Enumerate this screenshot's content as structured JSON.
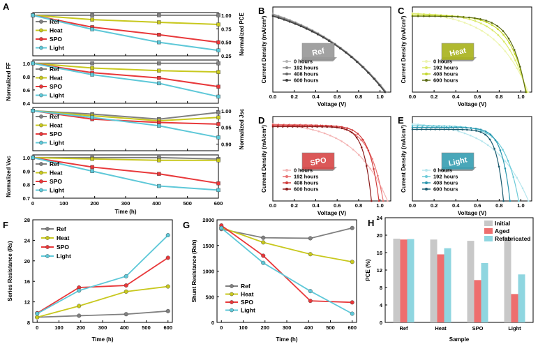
{
  "colors": {
    "Ref": "#808080",
    "Heat": "#c8c81e",
    "SPO": "#e8383a",
    "Light": "#5ec8d8"
  },
  "chart_data": [
    {
      "id": "A1",
      "type": "line",
      "panel_label": "A",
      "ylabel_right": "Normalized PCE",
      "x": [
        0,
        192,
        408,
        600
      ],
      "xlim": [
        0,
        600
      ],
      "ylim": [
        0.25,
        1.05
      ],
      "yticks": [
        0.25,
        0.5,
        0.75,
        1.0
      ],
      "ytick_labels": [
        "0.25",
        "0.50",
        "0.75",
        "1.00"
      ],
      "ytick_side": "right",
      "series": [
        {
          "name": "Ref",
          "values": [
            1.0,
            1.0,
            1.0,
            1.0
          ]
        },
        {
          "name": "Heat",
          "values": [
            1.0,
            0.92,
            0.87,
            0.83
          ]
        },
        {
          "name": "SPO",
          "values": [
            1.0,
            0.78,
            0.64,
            0.5
          ]
        },
        {
          "name": "Light",
          "values": [
            1.0,
            0.74,
            0.5,
            0.35
          ]
        }
      ]
    },
    {
      "id": "A2",
      "type": "line",
      "ylabel": "Normalized FF",
      "x": [
        0,
        192,
        408,
        600
      ],
      "xlim": [
        0,
        600
      ],
      "ylim": [
        0.4,
        1.05
      ],
      "yticks": [
        0.4,
        0.6,
        0.8,
        1.0
      ],
      "ytick_labels": [
        "0.4",
        "0.6",
        "0.8",
        "1.0"
      ],
      "ytick_side": "left",
      "series": [
        {
          "name": "Ref",
          "values": [
            1.0,
            1.0,
            1.0,
            1.0
          ]
        },
        {
          "name": "Heat",
          "values": [
            1.0,
            0.93,
            0.89,
            0.87
          ]
        },
        {
          "name": "SPO",
          "values": [
            1.0,
            0.86,
            0.78,
            0.65
          ]
        },
        {
          "name": "Light",
          "values": [
            1.0,
            0.83,
            0.7,
            0.5
          ]
        }
      ]
    },
    {
      "id": "A3",
      "type": "line",
      "ylabel_right": "Normalized Jsc",
      "x": [
        0,
        192,
        408,
        600
      ],
      "xlim": [
        0,
        600
      ],
      "ylim": [
        0.88,
        1.01
      ],
      "yticks": [
        0.9,
        0.95,
        1.0
      ],
      "ytick_labels": [
        "0.90",
        "0.95",
        "1.00"
      ],
      "ytick_side": "right",
      "series": [
        {
          "name": "Ref",
          "values": [
            1.0,
            0.99,
            0.975,
            0.995
          ]
        },
        {
          "name": "Heat",
          "values": [
            1.0,
            0.985,
            0.97,
            0.98
          ]
        },
        {
          "name": "SPO",
          "values": [
            1.0,
            0.975,
            0.965,
            0.96
          ]
        },
        {
          "name": "Light",
          "values": [
            1.0,
            0.98,
            0.955,
            0.92
          ]
        }
      ]
    },
    {
      "id": "A4",
      "type": "line",
      "ylabel": "Normalized Voc",
      "xlabel": "Time (h)",
      "x": [
        0,
        192,
        408,
        600
      ],
      "xlim": [
        0,
        600
      ],
      "ylim": [
        0.7,
        1.02
      ],
      "xticks": [
        0,
        100,
        200,
        300,
        400,
        500,
        600
      ],
      "yticks": [
        0.7,
        0.8,
        0.9,
        1.0
      ],
      "ytick_labels": [
        "0.7",
        "0.8",
        "0.9",
        "1.0"
      ],
      "ytick_side": "left",
      "series": [
        {
          "name": "Ref",
          "values": [
            1.0,
            1.0,
            1.0,
            0.99
          ]
        },
        {
          "name": "Heat",
          "values": [
            1.0,
            0.99,
            0.98,
            0.98
          ]
        },
        {
          "name": "SPO",
          "values": [
            1.0,
            0.93,
            0.88,
            0.81
          ]
        },
        {
          "name": "Light",
          "values": [
            1.0,
            0.9,
            0.79,
            0.76
          ]
        }
      ]
    },
    {
      "id": "B",
      "type": "line",
      "panel_label": "B",
      "device": "Ref",
      "xlabel": "Voltage (V)",
      "ylabel": "Current Density (mA/cm²)",
      "xlim": [
        0,
        1.1
      ],
      "ylim": [
        0,
        25
      ],
      "xticks": [
        0,
        0.2,
        0.4,
        0.6,
        0.8,
        1.0
      ],
      "xtick_labels": [
        "0.0",
        "0.2",
        "0.4",
        "0.6",
        "0.8",
        "1.0"
      ],
      "legend": [
        "0 hours",
        "192 hours",
        "408 hours",
        "600 hours"
      ],
      "curves": [
        {
          "Jsc": 23.0,
          "Voc": 1.06,
          "n": 30
        },
        {
          "Jsc": 22.8,
          "Voc": 1.055,
          "n": 30
        },
        {
          "Jsc": 22.5,
          "Voc": 1.05,
          "n": 28
        },
        {
          "Jsc": 22.3,
          "Voc": 1.045,
          "n": 28
        }
      ]
    },
    {
      "id": "C",
      "type": "line",
      "panel_label": "C",
      "device": "Heat",
      "xlabel": "Voltage (V)",
      "ylabel": "Current Density (mA/cm²)",
      "xlim": [
        0,
        1.1
      ],
      "ylim": [
        0,
        25
      ],
      "xticks": [
        0,
        0.2,
        0.4,
        0.6,
        0.8,
        1.0
      ],
      "xtick_labels": [
        "0.0",
        "0.2",
        "0.4",
        "0.6",
        "0.8",
        "1.0"
      ],
      "legend": [
        "0 hours",
        "192 hours",
        "408 hours",
        "600 hours"
      ],
      "curves": [
        {
          "Jsc": 23.2,
          "Voc": 1.07,
          "n": 12
        },
        {
          "Jsc": 23.0,
          "Voc": 1.055,
          "n": 8
        },
        {
          "Jsc": 22.6,
          "Voc": 1.05,
          "n": 6
        },
        {
          "Jsc": 22.3,
          "Voc": 1.045,
          "n": 5
        }
      ]
    },
    {
      "id": "D",
      "type": "line",
      "panel_label": "D",
      "device": "SPO",
      "xlabel": "Voltage (V)",
      "ylabel": "Current Density (mA/cm²)",
      "xlim": [
        0,
        1.1
      ],
      "ylim": [
        0,
        25
      ],
      "xticks": [
        0,
        0.2,
        0.4,
        0.6,
        0.8,
        1.0
      ],
      "xtick_labels": [
        "0.0",
        "0.2",
        "0.4",
        "0.6",
        "0.8",
        "1.0"
      ],
      "legend": [
        "0 hours",
        "192 hours",
        "408 hours",
        "600 hours"
      ],
      "curves": [
        {
          "Jsc": 22.8,
          "Voc": 1.07,
          "n": 12
        },
        {
          "Jsc": 22.6,
          "Voc": 1.03,
          "n": 5
        },
        {
          "Jsc": 22.4,
          "Voc": 0.99,
          "n": 3.5
        },
        {
          "Jsc": 22.0,
          "Voc": 0.92,
          "n": 2.8
        }
      ]
    },
    {
      "id": "E",
      "type": "line",
      "panel_label": "E",
      "device": "Light",
      "xlabel": "Voltage (V)",
      "ylabel": "Current Density (mA/cm²)",
      "xlim": [
        0,
        1.1
      ],
      "ylim": [
        0,
        25
      ],
      "xticks": [
        0,
        0.2,
        0.4,
        0.6,
        0.8,
        1.0
      ],
      "xtick_labels": [
        "0.0",
        "0.2",
        "0.4",
        "0.6",
        "0.8",
        "1.0"
      ],
      "legend": [
        "0 hours",
        "192 hours",
        "408 hours",
        "600 hours"
      ],
      "curves": [
        {
          "Jsc": 22.8,
          "Voc": 1.07,
          "n": 12
        },
        {
          "Jsc": 22.3,
          "Voc": 0.98,
          "n": 5
        },
        {
          "Jsc": 21.8,
          "Voc": 0.9,
          "n": 3
        },
        {
          "Jsc": 21.2,
          "Voc": 0.84,
          "n": 2.5
        }
      ]
    },
    {
      "id": "F",
      "type": "line",
      "panel_label": "F",
      "xlabel": "Time (h)",
      "ylabel": "Series Resistance (Rs)",
      "x": [
        0,
        192,
        408,
        600
      ],
      "xlim": [
        -20,
        620
      ],
      "ylim": [
        8,
        28
      ],
      "xticks": [
        0,
        100,
        200,
        300,
        400,
        500,
        600
      ],
      "yticks": [
        8,
        12,
        16,
        20,
        24,
        28
      ],
      "series": [
        {
          "name": "Ref",
          "values": [
            9.0,
            9.3,
            9.6,
            10.2
          ]
        },
        {
          "name": "Heat",
          "values": [
            9.0,
            11.2,
            14.0,
            15.0
          ]
        },
        {
          "name": "SPO",
          "values": [
            9.8,
            14.8,
            15.2,
            20.6
          ]
        },
        {
          "name": "Light",
          "values": [
            9.7,
            14.2,
            17.0,
            25.0
          ]
        }
      ]
    },
    {
      "id": "G",
      "type": "line",
      "panel_label": "G",
      "xlabel": "Time (h)",
      "ylabel": "Shunt Resistance (Rsh)",
      "x": [
        0,
        192,
        408,
        600
      ],
      "xlim": [
        -20,
        620
      ],
      "ylim": [
        0,
        2000
      ],
      "xticks": [
        0,
        100,
        200,
        300,
        400,
        500,
        600
      ],
      "yticks": [
        0,
        500,
        1000,
        1500,
        2000
      ],
      "series": [
        {
          "name": "Ref",
          "values": [
            1820,
            1650,
            1640,
            1840
          ]
        },
        {
          "name": "Heat",
          "values": [
            1850,
            1560,
            1330,
            1180
          ]
        },
        {
          "name": "SPO",
          "values": [
            1890,
            1300,
            420,
            390
          ]
        },
        {
          "name": "Light",
          "values": [
            1840,
            1160,
            610,
            170
          ]
        }
      ]
    },
    {
      "id": "H",
      "type": "bar",
      "panel_label": "H",
      "xlabel": "Sample",
      "ylabel": "PCE (%)",
      "categories": [
        "Ref",
        "Heat",
        "SPO",
        "Light"
      ],
      "ylim": [
        0,
        24
      ],
      "yticks": [
        0,
        4,
        8,
        12,
        16,
        20,
        24
      ],
      "series": [
        {
          "name": "Initial",
          "color": "#c8c8c8",
          "values": [
            19.2,
            19.0,
            18.7,
            19.5
          ]
        },
        {
          "name": "Aged",
          "color": "#ee6e6e",
          "values": [
            19.0,
            15.6,
            9.7,
            6.5
          ]
        },
        {
          "name": "Refabricated",
          "color": "#8fd6e0",
          "values": [
            19.1,
            17.0,
            13.6,
            11.0
          ]
        }
      ]
    }
  ]
}
